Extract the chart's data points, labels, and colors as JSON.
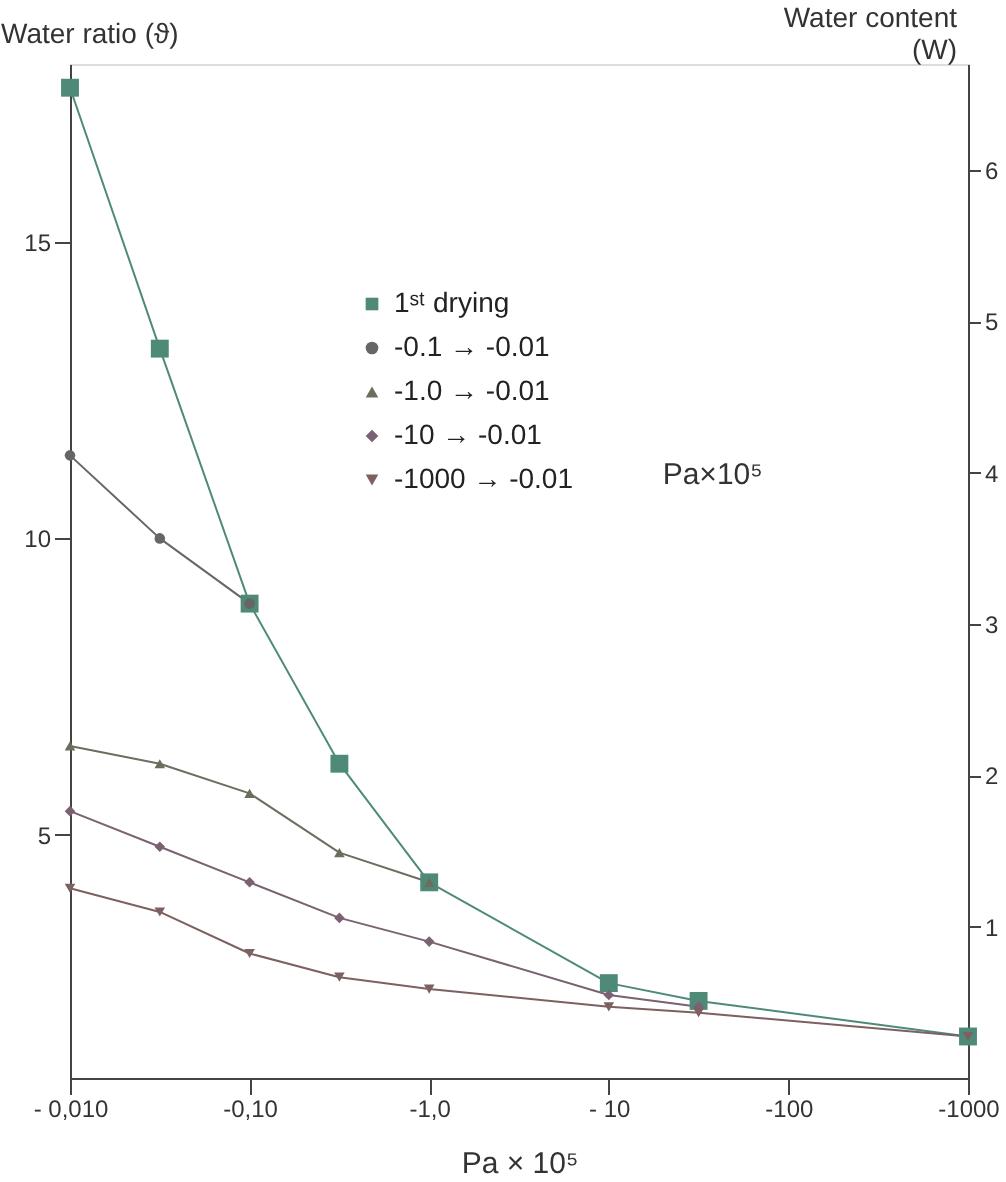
{
  "chart_data": {
    "type": "line",
    "xlabel": "Pa × 10⁵",
    "ylabel": "Water ratio (ϑ)",
    "y2label": "Water content\n(W)",
    "grid": false,
    "legend": "top",
    "line_style": "solid",
    "categories": [
      "- 0,010",
      null,
      "-0,10",
      null,
      "-1,0",
      null,
      "- 10",
      null,
      "-100",
      null,
      "-1000"
    ],
    "ylim": [
      0.9,
      18
    ],
    "yticks": [
      5,
      10,
      15
    ],
    "y2lim": [
      0,
      6.7
    ],
    "y2ticks": [
      1,
      2,
      3,
      4,
      5,
      6
    ],
    "annotations": [
      "Pa×10⁵"
    ],
    "series": [
      {
        "name": "1ˢᵗ drying",
        "color": "#4f8a78",
        "marker": "square",
        "values": [
          17.6,
          13.2,
          8.9,
          6.2,
          4.2,
          null,
          2.5,
          2.2,
          null,
          null,
          1.6
        ]
      },
      {
        "name": "-0.1 → -0.01",
        "color": "#666666",
        "marker": "circle",
        "values": [
          11.4,
          10.0,
          8.9,
          null,
          null,
          null,
          null,
          null,
          null,
          null,
          null
        ]
      },
      {
        "name": "-1.0 → -0.01",
        "color": "#6d6d5e",
        "marker": "triangle",
        "values": [
          6.5,
          6.2,
          5.7,
          4.7,
          4.2,
          null,
          null,
          null,
          null,
          null,
          null
        ]
      },
      {
        "name": "-10 → -0.01",
        "color": "#7a6272",
        "marker": "diamond",
        "values": [
          5.4,
          4.8,
          4.2,
          3.6,
          3.2,
          null,
          2.3,
          2.1,
          null,
          null,
          null
        ]
      },
      {
        "name": "-1000 → -0.01",
        "color": "#7d6060",
        "marker": "triangle-down",
        "values": [
          4.1,
          3.7,
          3.0,
          2.6,
          2.4,
          null,
          2.1,
          2.0,
          null,
          null,
          1.6
        ]
      }
    ]
  }
}
